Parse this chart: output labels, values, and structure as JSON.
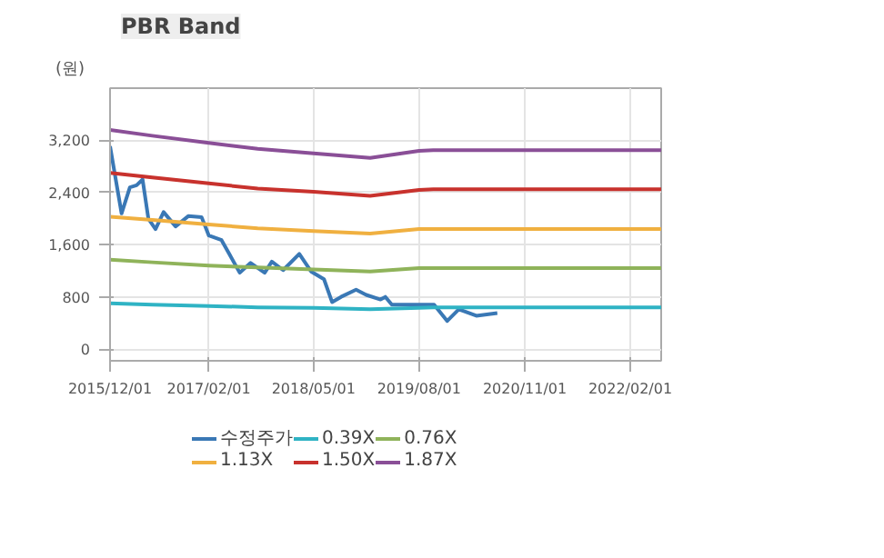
{
  "chart_data": {
    "type": "line",
    "title": "PBR Band",
    "ylabel": "(원)",
    "xlim": [
      "2015-12-01",
      "2022-06-15"
    ],
    "ylim": [
      -180,
      4000
    ],
    "xticks": [
      {
        "value": "2015-12-01",
        "label": "2015/12/01"
      },
      {
        "value": "2017-02-01",
        "label": "2017/02/01"
      },
      {
        "value": "2018-05-01",
        "label": "2018/05/01"
      },
      {
        "value": "2019-08-01",
        "label": "2019/08/01"
      },
      {
        "value": "2020-11-01",
        "label": "2020/11/01"
      },
      {
        "value": "2022-02-01",
        "label": "2022/02/01"
      }
    ],
    "yticks": [
      0,
      {
        "value": 800,
        "label": "800"
      },
      {
        "value": 1600,
        "label": "1,600"
      },
      {
        "value": 2400,
        "label": "2,400"
      },
      {
        "value": 3200,
        "label": "3,200"
      }
    ],
    "grid": true,
    "legend": "bottom",
    "marker": "none",
    "line_style": "solid",
    "series": [
      {
        "name": "수정주가",
        "color": "#3a78b5",
        "x": [
          "2015-12-01",
          "2016-01-20",
          "2016-02-25",
          "2016-03-25",
          "2016-04-20",
          "2016-05-15",
          "2016-06-15",
          "2016-07-20",
          "2016-09-10",
          "2016-11-05",
          "2017-01-01",
          "2017-02-01",
          "2017-03-28",
          "2017-06-15",
          "2017-08-01",
          "2017-10-01",
          "2017-11-01",
          "2017-12-20",
          "2018-02-28",
          "2018-04-20",
          "2018-06-15",
          "2018-07-20",
          "2018-08-28",
          "2018-11-01",
          "2018-12-15",
          "2019-02-15",
          "2019-03-08",
          "2019-04-05",
          "2019-10-05",
          "2019-12-01",
          "2020-01-20",
          "2020-04-05",
          "2020-07-05"
        ],
        "values": [
          3110,
          2080,
          2480,
          2510,
          2600,
          2000,
          1840,
          2100,
          1880,
          2040,
          2020,
          1740,
          1670,
          1170,
          1320,
          1170,
          1340,
          1210,
          1460,
          1190,
          1070,
          720,
          800,
          910,
          830,
          760,
          800,
          680,
          680,
          430,
          610,
          510,
          550
        ]
      },
      {
        "name": "0.39X",
        "color": "#2fb3c4",
        "x": [
          "2015-12-01",
          "2016-06-01",
          "2017-02-01",
          "2017-09-01",
          "2018-05-01",
          "2019-01-01",
          "2019-08-01",
          "2019-10-01",
          "2022-06-15"
        ],
        "values": [
          700,
          680,
          660,
          640,
          630,
          610,
          630,
          640,
          640
        ]
      },
      {
        "name": "0.76X",
        "color": "#8fb35a",
        "x": [
          "2015-12-01",
          "2016-06-01",
          "2017-02-01",
          "2017-09-01",
          "2018-05-01",
          "2019-01-01",
          "2019-08-01",
          "2019-10-01",
          "2022-06-15"
        ],
        "values": [
          1370,
          1330,
          1280,
          1250,
          1220,
          1190,
          1240,
          1240,
          1240
        ]
      },
      {
        "name": "1.13X",
        "color": "#f0b040",
        "x": [
          "2015-12-01",
          "2016-06-01",
          "2017-02-01",
          "2017-09-01",
          "2018-05-01",
          "2019-01-01",
          "2019-08-01",
          "2019-10-01",
          "2022-06-15"
        ],
        "values": [
          2030,
          1980,
          1910,
          1850,
          1810,
          1770,
          1840,
          1840,
          1840
        ]
      },
      {
        "name": "1.50X",
        "color": "#c8322d",
        "x": [
          "2015-12-01",
          "2016-06-01",
          "2017-02-01",
          "2017-09-01",
          "2018-05-01",
          "2019-01-01",
          "2019-08-01",
          "2019-10-01",
          "2022-06-15"
        ],
        "values": [
          2700,
          2630,
          2540,
          2460,
          2410,
          2350,
          2440,
          2450,
          2450
        ]
      },
      {
        "name": "1.87X",
        "color": "#8a4f97",
        "x": [
          "2015-12-01",
          "2016-06-01",
          "2017-02-01",
          "2017-09-01",
          "2018-05-01",
          "2019-01-01",
          "2019-08-01",
          "2019-10-01",
          "2022-06-15"
        ],
        "values": [
          3360,
          3270,
          3160,
          3070,
          3000,
          2930,
          3040,
          3050,
          3050
        ]
      }
    ]
  }
}
